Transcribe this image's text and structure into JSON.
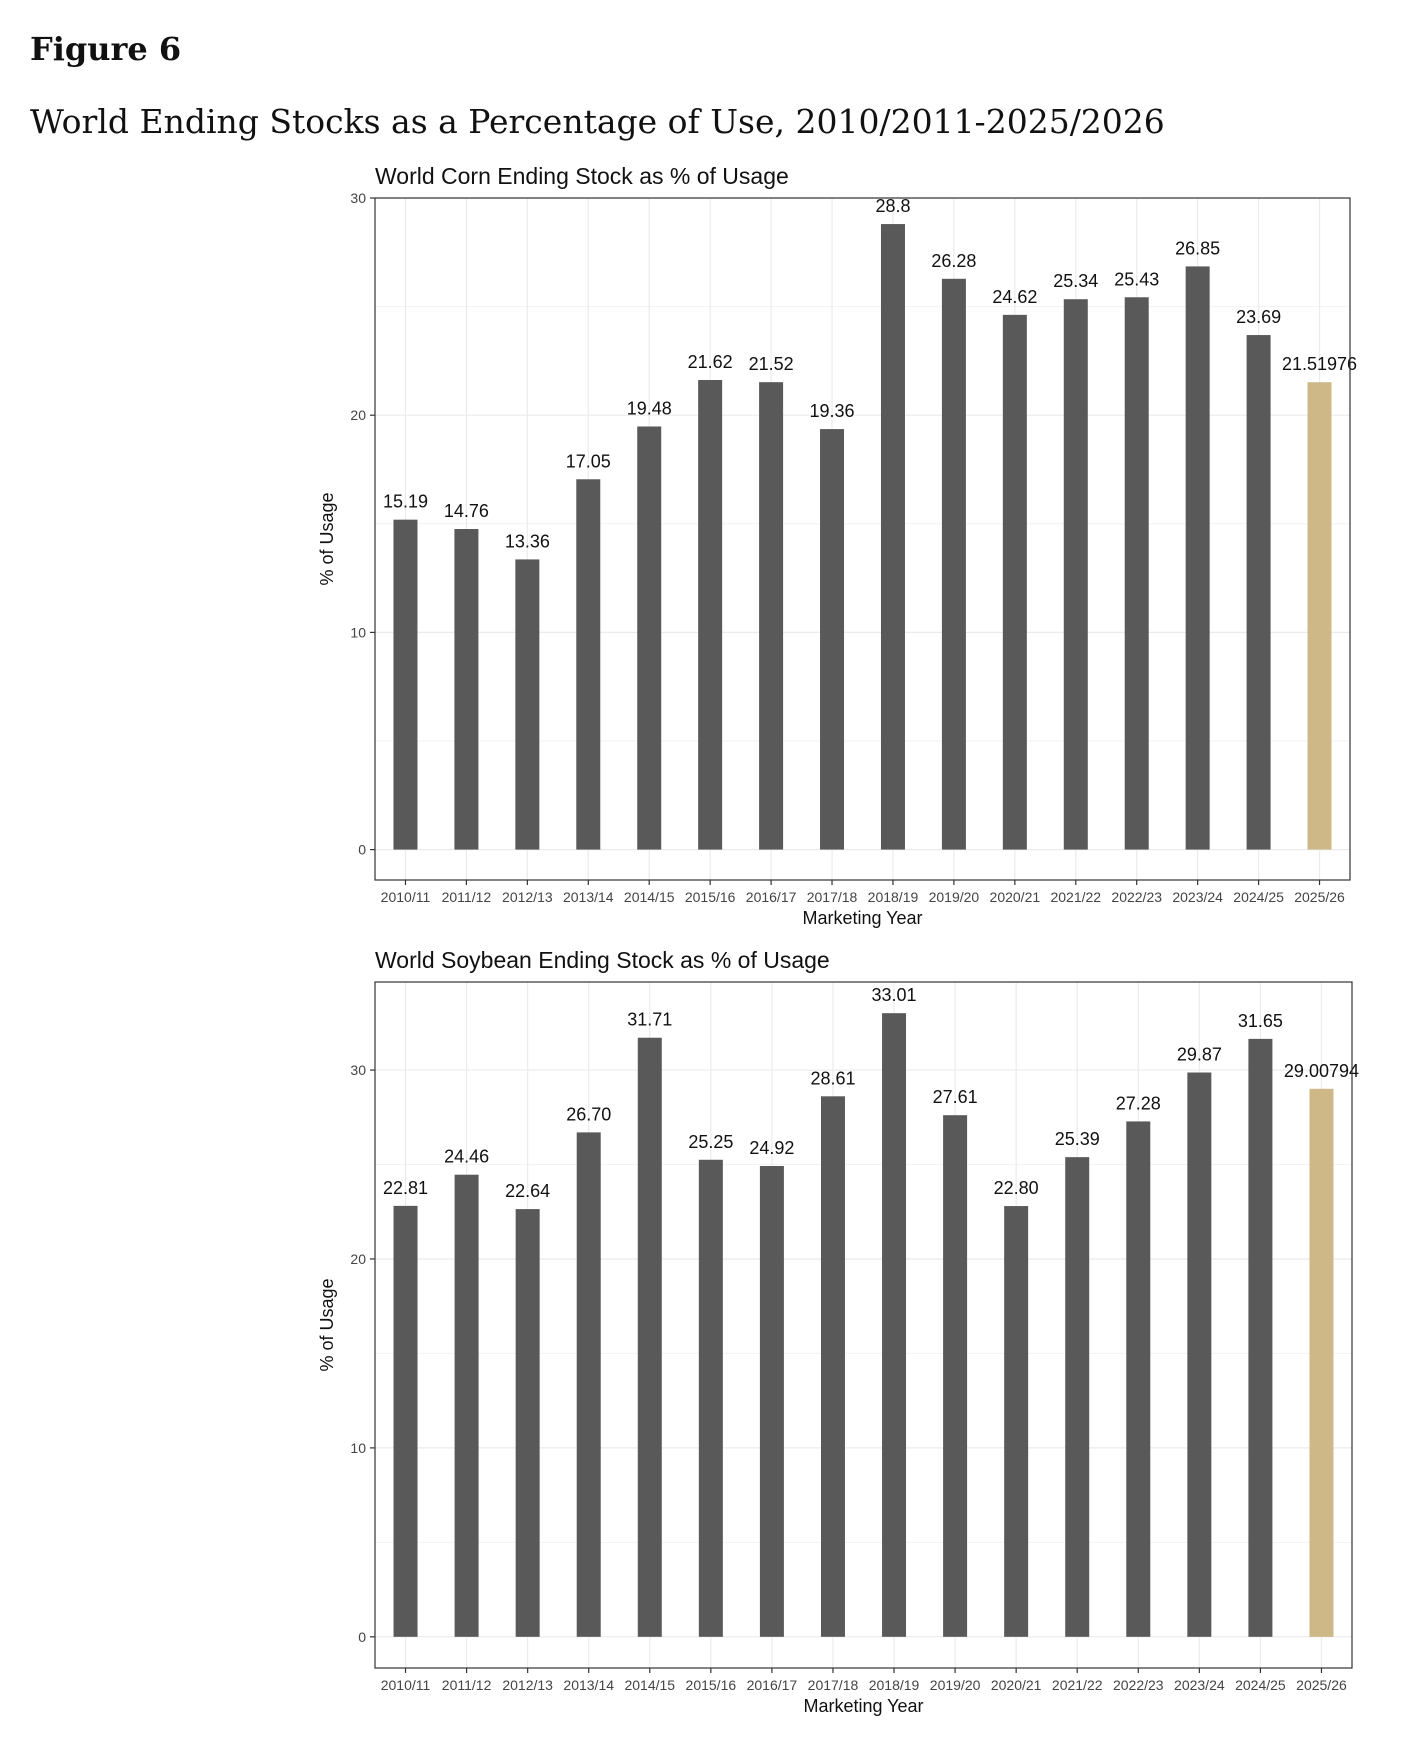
{
  "figure": {
    "label": "Figure 6",
    "title": "World Ending Stocks as a Percentage of Use, 2010/2011-2025/2026"
  },
  "colors": {
    "bar": "#595959",
    "highlight": "#cfb887",
    "grid": "#ebebeb",
    "panel_border": "#333333"
  },
  "chart_data": [
    {
      "type": "bar",
      "title": "World Corn Ending Stock as % of Usage",
      "xlabel": "Marketing Year",
      "ylabel": "% of Usage",
      "ylim": [
        -1.4,
        30
      ],
      "yticks": [
        0,
        10,
        20,
        30
      ],
      "grid": true,
      "categories": [
        "2010/11",
        "2011/12",
        "2012/13",
        "2013/14",
        "2014/15",
        "2015/16",
        "2016/17",
        "2017/18",
        "2018/19",
        "2019/20",
        "2020/21",
        "2021/22",
        "2022/23",
        "2023/24",
        "2024/25",
        "2025/26"
      ],
      "values": [
        15.19,
        14.76,
        13.36,
        17.05,
        19.48,
        21.62,
        21.52,
        19.36,
        28.8,
        26.28,
        24.62,
        25.34,
        25.43,
        26.85,
        23.69,
        21.51976
      ],
      "labels": [
        "15.19",
        "14.76",
        "13.36",
        "17.05",
        "19.48",
        "21.62",
        "21.52",
        "19.36",
        "28.8",
        "26.28",
        "24.62",
        "25.34",
        "25.43",
        "26.85",
        "23.69",
        "21.51976"
      ],
      "highlight_index": 15
    },
    {
      "type": "bar",
      "title": "World Soybean Ending Stock as % of Usage",
      "xlabel": "Marketing Year",
      "ylabel": "% of Usage",
      "ylim": [
        -1.65,
        34.66
      ],
      "yticks": [
        0,
        10,
        20,
        30
      ],
      "grid": true,
      "categories": [
        "2010/11",
        "2011/12",
        "2012/13",
        "2013/14",
        "2014/15",
        "2015/16",
        "2016/17",
        "2017/18",
        "2018/19",
        "2019/20",
        "2020/21",
        "2021/22",
        "2022/23",
        "2023/24",
        "2024/25",
        "2025/26"
      ],
      "values": [
        22.81,
        24.46,
        22.64,
        26.7,
        31.71,
        25.25,
        24.92,
        28.61,
        33.01,
        27.61,
        22.8,
        25.39,
        27.28,
        29.87,
        31.65,
        29.00794
      ],
      "labels": [
        "22.81",
        "24.46",
        "22.64",
        "26.70",
        "31.71",
        "25.25",
        "24.92",
        "28.61",
        "33.01",
        "27.61",
        "22.80",
        "25.39",
        "27.28",
        "29.87",
        "31.65",
        "29.00794"
      ],
      "highlight_index": 15
    }
  ]
}
